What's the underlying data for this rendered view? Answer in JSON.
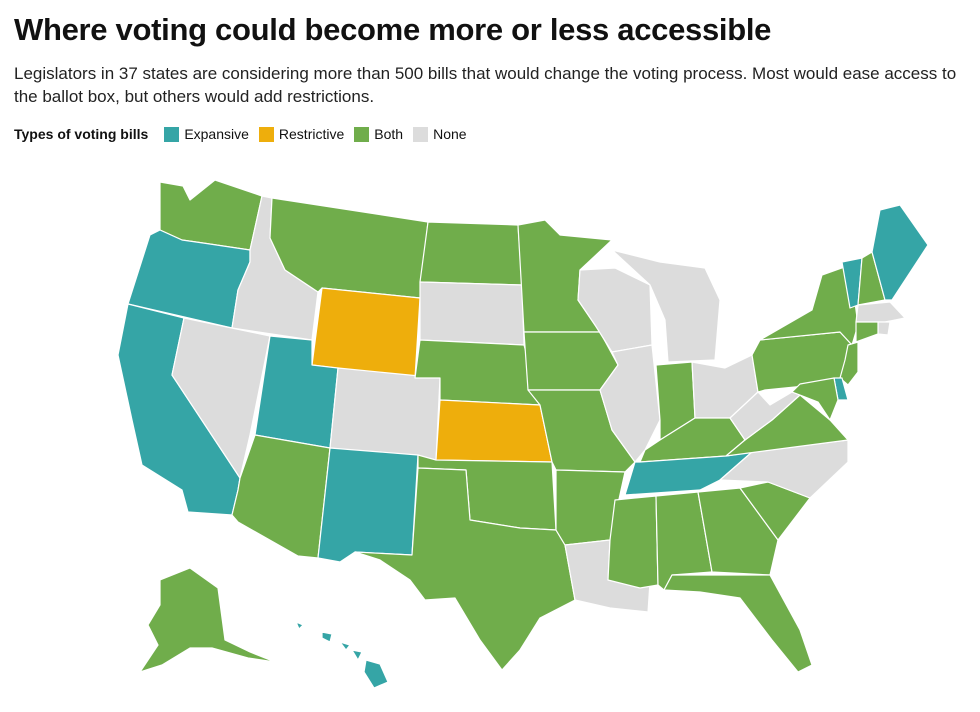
{
  "title": "Where voting could become more or less accessible",
  "subtitle": "Legislators in 37 states are considering more than 500 bills that would change the voting process. Most would ease access to the ballot box, but others would add restrictions.",
  "legend": {
    "title": "Types of voting bills",
    "items": [
      {
        "key": "expansive",
        "label": "Expansive",
        "color": "#35a5a6"
      },
      {
        "key": "restrictive",
        "label": "Restrictive",
        "color": "#eeae0c"
      },
      {
        "key": "both",
        "label": "Both",
        "color": "#70ad4b"
      },
      {
        "key": "none",
        "label": "None",
        "color": "#dcdcdc"
      }
    ]
  },
  "states": {
    "WA": "both",
    "OR": "expansive",
    "CA": "expansive",
    "ID": "none",
    "NV": "none",
    "MT": "both",
    "WY": "restrictive",
    "UT": "expansive",
    "AZ": "both",
    "CO": "none",
    "NM": "expansive",
    "ND": "both",
    "SD": "none",
    "NE": "both",
    "KS": "restrictive",
    "OK": "both",
    "TX": "both",
    "MN": "both",
    "IA": "both",
    "MO": "both",
    "AR": "both",
    "LA": "none",
    "WI": "none",
    "MI": "none",
    "IL": "none",
    "IN": "both",
    "OH": "none",
    "KY": "both",
    "TN": "expansive",
    "MS": "both",
    "AL": "both",
    "GA": "both",
    "FL": "both",
    "SC": "both",
    "NC": "none",
    "VA": "both",
    "WV": "none",
    "PA": "both",
    "NY": "both",
    "VT": "expansive",
    "NH": "both",
    "ME": "expansive",
    "MA": "none",
    "RI": "none",
    "CT": "both",
    "NJ": "both",
    "DE": "expansive",
    "MD": "both",
    "AK": "both",
    "HI": "expansive"
  }
}
